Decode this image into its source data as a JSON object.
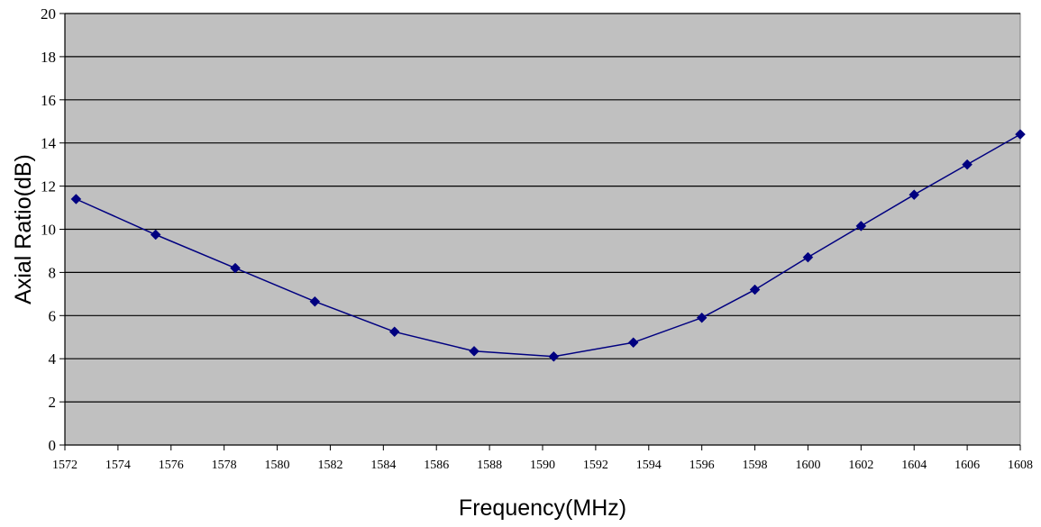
{
  "chart_data": {
    "type": "line",
    "title": "",
    "xlabel": "Frequency(MHz)",
    "ylabel": "Axial Ratio(dB)",
    "xlim": [
      1572,
      1608
    ],
    "ylim": [
      0,
      20
    ],
    "x_ticks": [
      "1572",
      "1574",
      "1576",
      "1578",
      "1580",
      "1582",
      "1584",
      "1586",
      "1588",
      "1590",
      "1592",
      "1594",
      "1596",
      "1598",
      "1600",
      "1602",
      "1604",
      "1606",
      "1608"
    ],
    "y_ticks": [
      "0",
      "2",
      "4",
      "6",
      "8",
      "10",
      "12",
      "14",
      "16",
      "18",
      "20"
    ],
    "grid": "horizontal",
    "legend": "none",
    "series": [
      {
        "color": "#000080",
        "marker": "diamond",
        "points": [
          {
            "x": 1572.42,
            "y": 11.4
          },
          {
            "x": 1575.42,
            "y": 9.75
          },
          {
            "x": 1578.42,
            "y": 8.2
          },
          {
            "x": 1581.42,
            "y": 6.65
          },
          {
            "x": 1584.42,
            "y": 5.25
          },
          {
            "x": 1587.42,
            "y": 4.35
          },
          {
            "x": 1590.42,
            "y": 4.1
          },
          {
            "x": 1593.42,
            "y": 4.75
          },
          {
            "x": 1596.0,
            "y": 5.9
          },
          {
            "x": 1598.0,
            "y": 7.2
          },
          {
            "x": 1600.0,
            "y": 8.7
          },
          {
            "x": 1602.0,
            "y": 10.15
          },
          {
            "x": 1604.0,
            "y": 11.6
          },
          {
            "x": 1606.0,
            "y": 13.0
          },
          {
            "x": 1608.0,
            "y": 14.4
          }
        ]
      }
    ],
    "colors": {
      "plot_background": "#c0c0c0",
      "gridline": "#000000"
    }
  }
}
